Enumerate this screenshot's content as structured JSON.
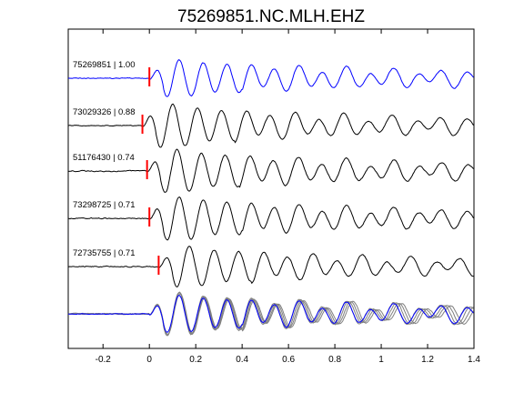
{
  "chart_data": {
    "type": "line",
    "title": "75269851.NC.MLH.EHZ",
    "xlabel": "",
    "ylabel": "",
    "xlim": [
      -0.35,
      1.4
    ],
    "xticks": [
      -0.2,
      0,
      0.2,
      0.4,
      0.6,
      0.8,
      1,
      1.2,
      1.4
    ],
    "xtick_labels": [
      "-0.2",
      "0",
      "0.2",
      "0.4",
      "0.6",
      "0.8",
      "1",
      "1.2",
      "1.4"
    ],
    "grid": false,
    "legend": "none",
    "colors": {
      "reference": "#0000ff",
      "matched": "#000000",
      "pick": "#ff0000",
      "stack_other": "#808080",
      "axes": "#000000"
    },
    "series": [
      {
        "name": "75269851 | 1.00",
        "pick_time": 0.0,
        "freq": 9.7,
        "amp": 0.85,
        "noise": 0.03,
        "decay": 0.75,
        "style": "reference"
      },
      {
        "name": "73029326 | 0.88",
        "pick_time": -0.03,
        "freq": 9.5,
        "amp": 1.0,
        "noise": 0.03,
        "decay": 0.9,
        "style": "matched"
      },
      {
        "name": "51176430 | 0.74",
        "pick_time": -0.01,
        "freq": 9.6,
        "amp": 1.0,
        "noise": 0.04,
        "decay": 0.85,
        "style": "matched"
      },
      {
        "name": "73298725 | 0.71",
        "pick_time": 0.0,
        "freq": 9.7,
        "amp": 1.0,
        "noise": 0.04,
        "decay": 0.8,
        "style": "matched"
      },
      {
        "name": "72735755 | 0.71",
        "pick_time": 0.04,
        "freq": 9.4,
        "amp": 0.95,
        "noise": 0.04,
        "decay": 0.85,
        "style": "matched"
      }
    ],
    "stack": {
      "style": "overlay"
    }
  }
}
